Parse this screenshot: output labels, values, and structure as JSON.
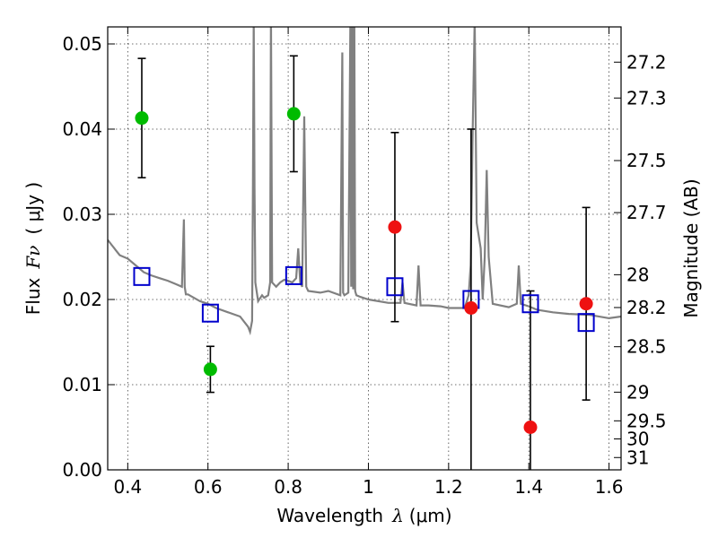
{
  "chart_data": {
    "type": "scatter",
    "xlabel_prefix": "Wavelength",
    "xlabel_symbol": "λ",
    "xlabel_unit": "(μm)",
    "ylabel_prefix": "Flux",
    "ylabel_symbol": "Fν",
    "ylabel_unit": "( μJy )",
    "y2label": "Magnitude (AB)",
    "xlim": [
      0.35,
      1.63
    ],
    "ylim": [
      0.0,
      0.052
    ],
    "xticks": [
      0.4,
      0.6,
      0.8,
      1.0,
      1.2,
      1.4,
      1.6
    ],
    "xtick_labels": [
      "0.4",
      "0.6",
      "0.8",
      "1",
      "1.2",
      "1.4",
      "1.6"
    ],
    "yticks": [
      0.0,
      0.01,
      0.02,
      0.03,
      0.04,
      0.05
    ],
    "ytick_labels": [
      "0.00",
      "0.01",
      "0.02",
      "0.03",
      "0.04",
      "0.05"
    ],
    "y2ticks": [
      {
        "label": "27.2",
        "value": 27.2
      },
      {
        "label": "27.3",
        "value": 27.3
      },
      {
        "label": "27.5",
        "value": 27.5
      },
      {
        "label": "27.7",
        "value": 27.7
      },
      {
        "label": "28",
        "value": 28.0
      },
      {
        "label": "28.2",
        "value": 28.2
      },
      {
        "label": "28.5",
        "value": 28.5
      },
      {
        "label": "29",
        "value": 29.0
      },
      {
        "label": "29.5",
        "value": 29.5
      },
      {
        "label": "30",
        "value": 30.0
      },
      {
        "label": "31",
        "value": 31.0
      }
    ],
    "grid": true,
    "colors": {
      "detected": "#00bb00",
      "nondetected": "#ee1111",
      "model": "#0000cc",
      "spectrum": "#808080",
      "errorbar": "#000000"
    },
    "observed": [
      {
        "x": 0.435,
        "y": 0.0413,
        "yerr_low": 0.007,
        "yerr_high": 0.007,
        "kind": "detected"
      },
      {
        "x": 0.606,
        "y": 0.0118,
        "yerr_low": 0.0027,
        "yerr_high": 0.0027,
        "kind": "detected"
      },
      {
        "x": 0.814,
        "y": 0.0418,
        "yerr_low": 0.0068,
        "yerr_high": 0.0068,
        "kind": "detected"
      },
      {
        "x": 1.066,
        "y": 0.0285,
        "yerr_low": 0.0111,
        "yerr_high": 0.0111,
        "kind": "nondetected"
      },
      {
        "x": 1.256,
        "y": 0.019,
        "yerr_low": 0.021,
        "yerr_high": 0.021,
        "kind": "nondetected"
      },
      {
        "x": 1.404,
        "y": 0.005,
        "yerr_low": 0.016,
        "yerr_high": 0.016,
        "kind": "nondetected"
      },
      {
        "x": 1.543,
        "y": 0.0195,
        "yerr_low": 0.0113,
        "yerr_high": 0.0113,
        "kind": "nondetected"
      }
    ],
    "model_points": [
      {
        "x": 0.435,
        "y": 0.0227
      },
      {
        "x": 0.606,
        "y": 0.0184
      },
      {
        "x": 0.814,
        "y": 0.0228
      },
      {
        "x": 1.066,
        "y": 0.0215
      },
      {
        "x": 1.256,
        "y": 0.02
      },
      {
        "x": 1.404,
        "y": 0.0195
      },
      {
        "x": 1.543,
        "y": 0.0173
      }
    ],
    "spectrum": {
      "x": [
        0.35,
        0.37,
        0.38,
        0.4,
        0.42,
        0.44,
        0.46,
        0.48,
        0.5,
        0.52,
        0.535,
        0.54,
        0.542,
        0.545,
        0.55,
        0.58,
        0.6,
        0.62,
        0.65,
        0.68,
        0.7,
        0.705,
        0.71,
        0.712,
        0.714,
        0.716,
        0.718,
        0.725,
        0.735,
        0.74,
        0.75,
        0.755,
        0.757,
        0.76,
        0.77,
        0.78,
        0.79,
        0.8,
        0.81,
        0.82,
        0.825,
        0.83,
        0.835,
        0.84,
        0.845,
        0.85,
        0.88,
        0.9,
        0.93,
        0.935,
        0.937,
        0.94,
        0.95,
        0.955,
        0.957,
        0.96,
        0.962,
        0.965,
        0.967,
        0.97,
        0.98,
        1.0,
        1.05,
        1.08,
        1.085,
        1.09,
        1.12,
        1.125,
        1.13,
        1.15,
        1.18,
        1.2,
        1.22,
        1.24,
        1.25,
        1.255,
        1.26,
        1.265,
        1.27,
        1.28,
        1.285,
        1.29,
        1.295,
        1.3,
        1.31,
        1.35,
        1.37,
        1.375,
        1.38,
        1.4,
        1.42,
        1.46,
        1.5,
        1.55,
        1.6,
        1.63
      ],
      "y": [
        0.027,
        0.0258,
        0.0252,
        0.0248,
        0.024,
        0.0232,
        0.0228,
        0.0225,
        0.0222,
        0.0218,
        0.0215,
        0.0294,
        0.0215,
        0.0206,
        0.0206,
        0.0198,
        0.0195,
        0.019,
        0.0185,
        0.018,
        0.0168,
        0.0162,
        0.0175,
        0.033,
        0.053,
        0.033,
        0.022,
        0.0198,
        0.0205,
        0.0202,
        0.0205,
        0.022,
        0.054,
        0.022,
        0.0215,
        0.022,
        0.0223,
        0.0222,
        0.022,
        0.0225,
        0.026,
        0.022,
        0.0215,
        0.0415,
        0.0215,
        0.021,
        0.0208,
        0.021,
        0.0205,
        0.049,
        0.0208,
        0.0205,
        0.0208,
        0.053,
        0.0215,
        0.053,
        0.0212,
        0.053,
        0.021,
        0.0205,
        0.0203,
        0.02,
        0.0196,
        0.0196,
        0.022,
        0.0196,
        0.0193,
        0.024,
        0.0193,
        0.0193,
        0.0192,
        0.019,
        0.019,
        0.019,
        0.0205,
        0.024,
        0.04,
        0.053,
        0.029,
        0.026,
        0.02,
        0.025,
        0.0352,
        0.025,
        0.0195,
        0.0191,
        0.0195,
        0.024,
        0.0195,
        0.0192,
        0.0188,
        0.0185,
        0.0183,
        0.0182,
        0.0178,
        0.018
      ]
    }
  }
}
